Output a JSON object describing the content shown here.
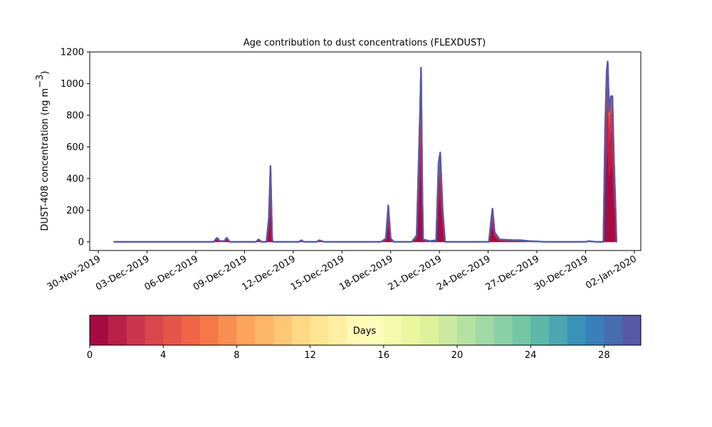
{
  "chart_data": {
    "type": "area",
    "title": "Age contribution to dust concentrations (FLEXDUST)",
    "ylabel": "DUST-408 concentration (ng m⁻³)",
    "ylabel_main": "DUST-408 concentration (ng m",
    "ylabel_sup": "−3",
    "ylabel_close": ")",
    "xlabel": "",
    "ylim": [
      -55,
      1200
    ],
    "yticks": [
      0,
      200,
      400,
      600,
      800,
      1000,
      1200
    ],
    "x_unit": "days since 30-Nov-2019",
    "xlim": [
      -0.53,
      33.4
    ],
    "xticks": [
      {
        "day": 0,
        "label": "30-Nov-2019"
      },
      {
        "day": 3,
        "label": "03-Dec-2019"
      },
      {
        "day": 6,
        "label": "06-Dec-2019"
      },
      {
        "day": 9,
        "label": "09-Dec-2019"
      },
      {
        "day": 12,
        "label": "12-Dec-2019"
      },
      {
        "day": 15,
        "label": "15-Dec-2019"
      },
      {
        "day": 18,
        "label": "18-Dec-2019"
      },
      {
        "day": 21,
        "label": "21-Dec-2019"
      },
      {
        "day": 24,
        "label": "24-Dec-2019"
      },
      {
        "day": 27,
        "label": "27-Dec-2019"
      },
      {
        "day": 30,
        "label": "30-Dec-2019"
      },
      {
        "day": 33,
        "label": "02-Jan-2020"
      }
    ],
    "total_series": [
      [
        0.97,
        0
      ],
      [
        7.1,
        0
      ],
      [
        7.3,
        25
      ],
      [
        7.5,
        5
      ],
      [
        7.75,
        5
      ],
      [
        7.9,
        25
      ],
      [
        8.1,
        0
      ],
      [
        9.7,
        0
      ],
      [
        9.87,
        15
      ],
      [
        10.05,
        0
      ],
      [
        10.35,
        0
      ],
      [
        10.5,
        150
      ],
      [
        10.6,
        480
      ],
      [
        10.7,
        20
      ],
      [
        10.75,
        0
      ],
      [
        12.35,
        0
      ],
      [
        12.5,
        10
      ],
      [
        12.65,
        0
      ],
      [
        13.45,
        0
      ],
      [
        13.6,
        10
      ],
      [
        13.9,
        0
      ],
      [
        17.4,
        0
      ],
      [
        17.7,
        20
      ],
      [
        17.85,
        230
      ],
      [
        18.0,
        20
      ],
      [
        18.2,
        0
      ],
      [
        19.3,
        0
      ],
      [
        19.6,
        40
      ],
      [
        19.8,
        800
      ],
      [
        19.87,
        1100
      ],
      [
        19.95,
        300
      ],
      [
        20.0,
        15
      ],
      [
        20.4,
        5
      ],
      [
        20.8,
        10
      ],
      [
        20.95,
        500
      ],
      [
        21.05,
        565
      ],
      [
        21.2,
        200
      ],
      [
        21.35,
        0
      ],
      [
        24.05,
        0
      ],
      [
        24.2,
        150
      ],
      [
        24.27,
        210
      ],
      [
        24.4,
        60
      ],
      [
        24.7,
        15
      ],
      [
        25.5,
        10
      ],
      [
        26.0,
        10
      ],
      [
        26.5,
        5
      ],
      [
        27.5,
        0
      ],
      [
        30.0,
        0
      ],
      [
        30.2,
        5
      ],
      [
        30.6,
        0
      ],
      [
        31.1,
        0
      ],
      [
        31.2,
        700
      ],
      [
        31.3,
        1080
      ],
      [
        31.36,
        1140
      ],
      [
        31.45,
        820
      ],
      [
        31.55,
        920
      ],
      [
        31.65,
        920
      ],
      [
        31.75,
        500
      ],
      [
        31.85,
        200
      ],
      [
        31.9,
        0
      ]
    ],
    "colorbar": {
      "label": "Days",
      "range": [
        0,
        30
      ],
      "bins": 30,
      "ticks": [
        0,
        4,
        8,
        12,
        16,
        20,
        24,
        28
      ],
      "colormap": "Spectral",
      "anchors": [
        "#9e0142",
        "#d53e4f",
        "#f46d43",
        "#fdae61",
        "#fee08b",
        "#ffffbf",
        "#e6f598",
        "#abdda4",
        "#66c2a5",
        "#3288bd",
        "#5e4fa2"
      ]
    }
  }
}
